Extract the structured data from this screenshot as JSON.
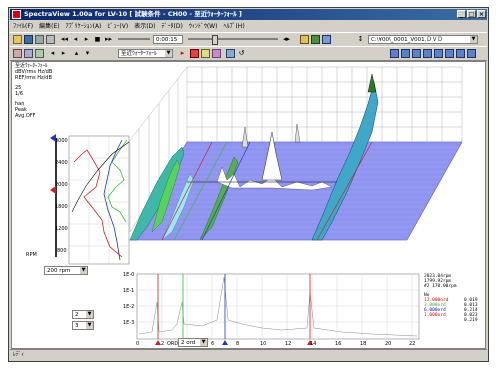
{
  "window": {
    "title": "SpectraView 1.00a for LV-10 [ 試験条件 - CH00 - 至近ｳｫｰﾀｰﾌｫｰﾙ ]",
    "min_label": "_",
    "max_label": "□",
    "close_label": "×"
  },
  "menu": [
    "ﾌｧｲﾙ(F)",
    "編集(E)",
    "ｱﾌﾟﾘｹｰｼｮﾝ(A)",
    "ﾋﾞｭｰ(V)",
    "表示(D)",
    "ﾃﾞｰﾀ(D)",
    "ｳｨﾝﾄﾞｳ(W)",
    "ﾍﾙﾌﾟ(H)"
  ],
  "toolbar": {
    "time_value": "0:00:15",
    "view_combo": "至近ｳｫｰﾀｰﾌｫｰﾙ",
    "file_combo": "C:\\¥00\\_0001_V001.ＤＶＤ"
  },
  "info": {
    "line1": "至近ｳｫｰﾀｰﾌｫｰﾙ",
    "line2": "dBV/rms    Hz/dB",
    "line3": "REF/rms    Hz/dB",
    "line4": "25",
    "line5": "1/6",
    "line6": "han",
    "line7": "Peak",
    "line8": "Avg.OFF"
  },
  "left_panel": {
    "y_ticks": [
      "3000",
      "2400",
      "2000",
      "1800",
      "1200",
      "800"
    ],
    "rpm_combo": "200 rpm",
    "axis_label": "RPM",
    "combo_a": "2",
    "combo_b": "3"
  },
  "bottom_plot": {
    "y_ticks": [
      "1E-0",
      "1E-1",
      "1E-2",
      "1E-3"
    ],
    "x_ticks": [
      "0",
      "2",
      "4",
      "6",
      "8",
      "10",
      "12",
      "14",
      "16",
      "18",
      "20",
      "22"
    ],
    "x_combo": "2 ord",
    "x_label": "ORDER"
  },
  "legend": {
    "header": [
      {
        "text": "2023.04rpm",
        "color": "#000000"
      },
      {
        "text": "1799.92rpm",
        "color": "#000000"
      },
      {
        "text": "#2 170.00rpm",
        "color": "#000000"
      }
    ],
    "col_label": "No",
    "rows": [
      {
        "label": "12.000ord",
        "value": "0.019",
        "color": "#cc0000"
      },
      {
        "label": "3.000ord",
        "value": "0.013",
        "color": "#33aa33"
      },
      {
        "label": "6.000ord",
        "value": "0.214",
        "color": "#0000cc"
      },
      {
        "label": "1.000ord",
        "value": "0.023",
        "color": "#cc0000"
      },
      {
        "label": "",
        "value": "0.219",
        "color": "#000000"
      }
    ]
  },
  "status": {
    "text": "ﾚﾃﾞｨ"
  },
  "colors": {
    "floor": "#8f94f0",
    "grid": "#aaaaaa",
    "cursor_red": "#cc2222",
    "cursor_green": "#33bb33",
    "cursor_blue": "#2233cc"
  }
}
